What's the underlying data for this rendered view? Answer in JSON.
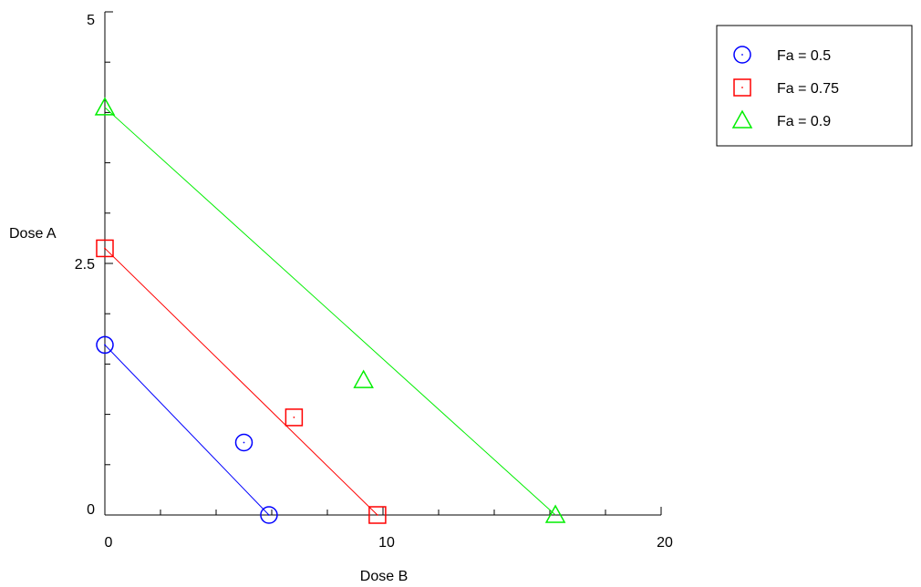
{
  "chart_data": {
    "type": "scatter",
    "title": "",
    "xlabel": "Dose B",
    "ylabel": "Dose A",
    "xlim": [
      0,
      20
    ],
    "ylim": [
      0,
      5
    ],
    "xticks": [
      0,
      10,
      20
    ],
    "xtick_labels": [
      "0",
      "10",
      "20"
    ],
    "yticks": [
      0,
      2.5,
      5
    ],
    "ytick_labels": [
      "0",
      "2.5",
      "5"
    ],
    "grid": false,
    "legend_position": "top-right",
    "series": [
      {
        "name": "Fa = 0.5",
        "color": "#0000ff",
        "marker": "circle",
        "isobole": [
          [
            0,
            1.69
          ],
          [
            5.9,
            0
          ]
        ],
        "points": [
          [
            5,
            0.72
          ]
        ]
      },
      {
        "name": "Fa = 0.75",
        "color": "#ff0000",
        "marker": "square",
        "isobole": [
          [
            0,
            2.65
          ],
          [
            9.8,
            0
          ]
        ],
        "points": [
          [
            6.8,
            0.97
          ]
        ]
      },
      {
        "name": "Fa = 0.9",
        "color": "#00ee00",
        "marker": "triangle",
        "isobole": [
          [
            0,
            4.05
          ],
          [
            16.2,
            0
          ]
        ],
        "points": [
          [
            9.3,
            1.34
          ]
        ]
      }
    ]
  }
}
